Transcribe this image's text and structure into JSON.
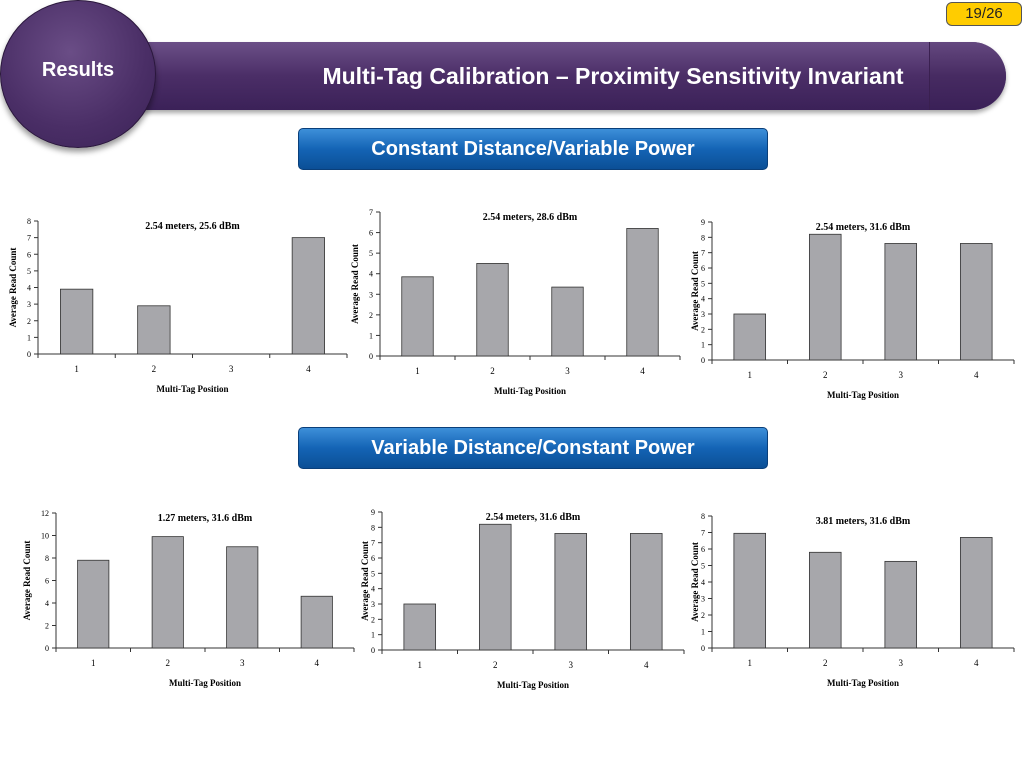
{
  "page_number": "19/26",
  "section_label": "Results",
  "title": "Multi-Tag Calibration – Proximity Sensitivity Invariant",
  "group_labels": [
    "Constant Distance/Variable Power",
    "Variable Distance/Constant Power"
  ],
  "colors": {
    "bar": "#a7a7ab",
    "title_bar": "#4b2e67",
    "label_blue": "#1464b5",
    "page_badge": "#ffcc00"
  },
  "chart_data": [
    {
      "type": "bar",
      "title": "2.54 meters, 25.6 dBm",
      "xlabel": "Multi-Tag Position",
      "ylabel": "Average Read Count",
      "categories": [
        "1",
        "2",
        "3",
        "4"
      ],
      "values": [
        3.9,
        2.9,
        0,
        7.0
      ],
      "ylim": [
        0,
        8
      ],
      "yticks": [
        0,
        1,
        2,
        3,
        4,
        5,
        6,
        7,
        8
      ]
    },
    {
      "type": "bar",
      "title": "2.54 meters, 28.6 dBm",
      "xlabel": "Multi-Tag Position",
      "ylabel": "Average Read Count",
      "categories": [
        "1",
        "2",
        "3",
        "4"
      ],
      "values": [
        3.85,
        4.5,
        3.35,
        6.2
      ],
      "ylim": [
        0,
        7
      ],
      "yticks": [
        0,
        1,
        2,
        3,
        4,
        5,
        6,
        7
      ]
    },
    {
      "type": "bar",
      "title": "2.54 meters, 31.6 dBm",
      "xlabel": "Multi-Tag Position",
      "ylabel": "Average Read Count",
      "categories": [
        "1",
        "2",
        "3",
        "4"
      ],
      "values": [
        3.0,
        8.2,
        7.6,
        7.6
      ],
      "ylim": [
        0,
        9
      ],
      "yticks": [
        0,
        1,
        2,
        3,
        4,
        5,
        6,
        7,
        8,
        9
      ]
    },
    {
      "type": "bar",
      "title": "1.27 meters, 31.6 dBm",
      "xlabel": "Multi-Tag Position",
      "ylabel": "Average Read Count",
      "categories": [
        "1",
        "2",
        "3",
        "4"
      ],
      "values": [
        7.8,
        9.9,
        9.0,
        4.6
      ],
      "ylim": [
        0,
        12
      ],
      "yticks": [
        0,
        2,
        4,
        6,
        8,
        10,
        12
      ]
    },
    {
      "type": "bar",
      "title": "2.54 meters, 31.6 dBm",
      "xlabel": "Multi-Tag Position",
      "ylabel": "Average Read Count",
      "categories": [
        "1",
        "2",
        "3",
        "4"
      ],
      "values": [
        3.0,
        8.2,
        7.6,
        7.6
      ],
      "ylim": [
        0,
        9
      ],
      "yticks": [
        0,
        1,
        2,
        3,
        4,
        5,
        6,
        7,
        8,
        9
      ]
    },
    {
      "type": "bar",
      "title": "3.81 meters, 31.6 dBm",
      "xlabel": "Multi-Tag Position",
      "ylabel": "Average Read Count",
      "categories": [
        "1",
        "2",
        "3",
        "4"
      ],
      "values": [
        6.95,
        5.8,
        5.25,
        6.7
      ],
      "ylim": [
        0,
        8
      ],
      "yticks": [
        0,
        1,
        2,
        3,
        4,
        5,
        6,
        7,
        8
      ]
    }
  ]
}
